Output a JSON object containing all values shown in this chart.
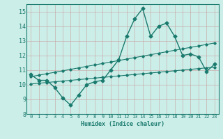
{
  "xlabel": "Humidex (Indice chaleur)",
  "bg_color": "#cceee8",
  "grid_color": "#b0b0b0",
  "line_color": "#1a7a6e",
  "xlim": [
    -0.5,
    23.5
  ],
  "ylim": [
    8,
    15.5
  ],
  "yticks": [
    8,
    9,
    10,
    11,
    12,
    13,
    14,
    15
  ],
  "xticks": [
    0,
    1,
    2,
    3,
    4,
    5,
    6,
    7,
    8,
    9,
    10,
    11,
    12,
    13,
    14,
    15,
    16,
    17,
    18,
    19,
    20,
    21,
    22,
    23
  ],
  "main_y": [
    10.7,
    10.3,
    10.3,
    9.8,
    9.1,
    8.6,
    9.3,
    10.0,
    10.2,
    10.3,
    11.0,
    11.7,
    13.3,
    14.5,
    15.2,
    13.3,
    14.0,
    14.2,
    13.3,
    12.0,
    12.1,
    11.9,
    10.9,
    11.4
  ],
  "upper_y": [
    10.55,
    10.65,
    10.75,
    10.85,
    10.95,
    11.05,
    11.15,
    11.25,
    11.35,
    11.45,
    11.55,
    11.65,
    11.75,
    11.85,
    11.95,
    12.05,
    12.15,
    12.25,
    12.35,
    12.45,
    12.55,
    12.65,
    12.75,
    12.85
  ],
  "lower_y": [
    10.05,
    10.1,
    10.15,
    10.2,
    10.25,
    10.3,
    10.35,
    10.4,
    10.45,
    10.5,
    10.55,
    10.6,
    10.65,
    10.7,
    10.75,
    10.8,
    10.85,
    10.9,
    10.95,
    11.0,
    11.05,
    11.1,
    11.15,
    11.2
  ]
}
